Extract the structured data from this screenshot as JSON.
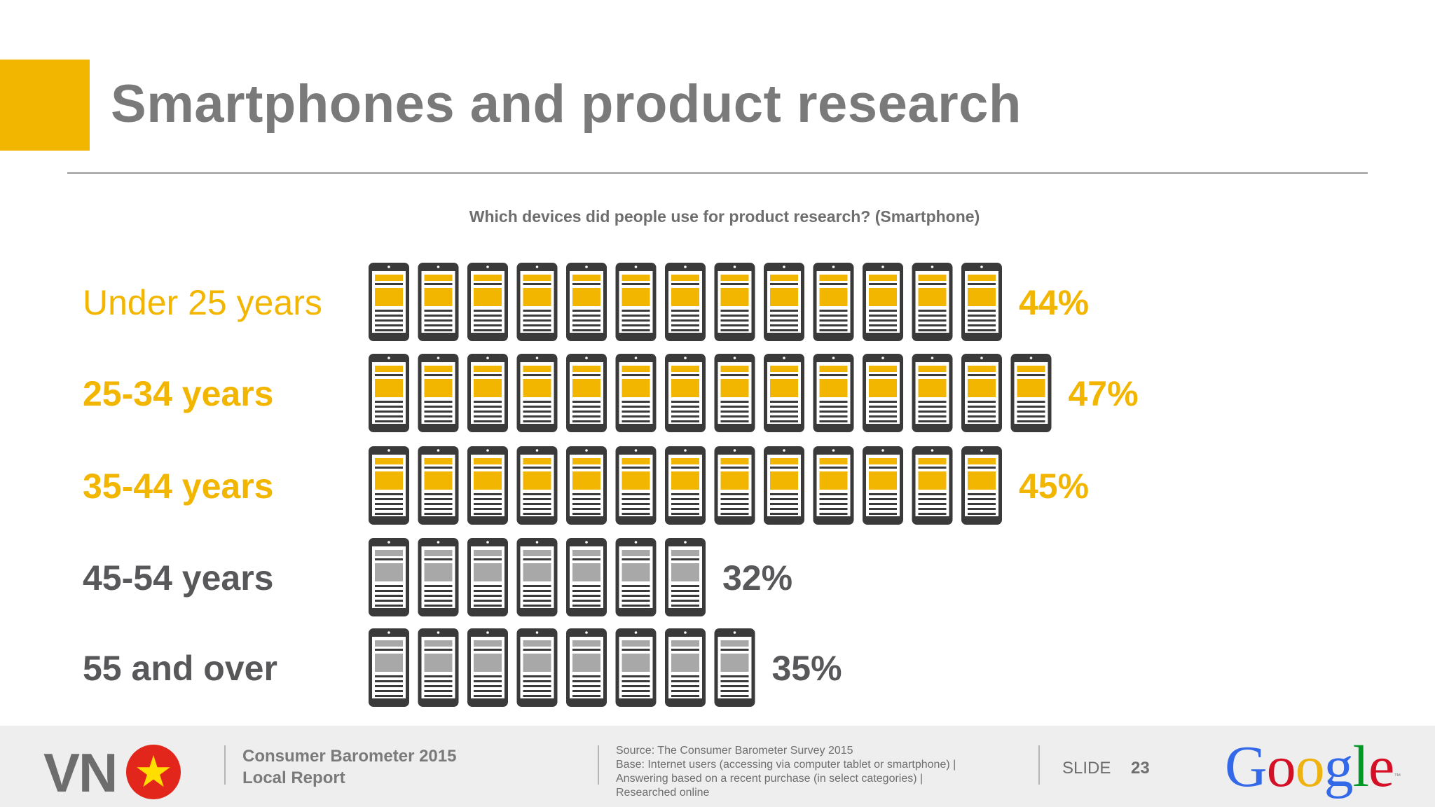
{
  "slide": {
    "title": "Smartphones and product research",
    "accent_color": "#f2b600"
  },
  "chart_data": {
    "type": "pictograph",
    "question": "Which devices did people use for product research? (Smartphone)",
    "icon": "smartphone-icon",
    "unit": "%",
    "rows": [
      {
        "label": "Under 25 years",
        "value": 44,
        "value_label": "44%",
        "icons": 13,
        "color": "#f2b600",
        "label_bold": false
      },
      {
        "label": "25-34 years",
        "value": 47,
        "value_label": "47%",
        "icons": 14,
        "color": "#f2b600",
        "label_bold": true
      },
      {
        "label": "35-44 years",
        "value": 45,
        "value_label": "45%",
        "icons": 13,
        "color": "#f2b600",
        "label_bold": true
      },
      {
        "label": "45-54 years",
        "value": 32,
        "value_label": "32%",
        "icons": 7,
        "color": "#58585a",
        "label_bold": true
      },
      {
        "label": "55 and over",
        "value": 35,
        "value_label": "35%",
        "icons": 8,
        "color": "#58585a",
        "label_bold": true
      }
    ],
    "icon_colors": {
      "highlight": "#f2b600",
      "muted": "#a8a8a8",
      "body": "#3a3a3a"
    }
  },
  "footer": {
    "country_code": "VN",
    "flag_icon": "vietnam-flag-icon",
    "report_line1": "Consumer Barometer 2015",
    "report_line2": "Local Report",
    "source_lines": [
      "Source: The Consumer Barometer Survey 2015",
      "Base: Internet users (accessing via computer  tablet or smartphone) |",
      "Answering based on a recent purchase (in select categories) |",
      "Researched online"
    ],
    "slide_label": "SLIDE",
    "slide_number": "23",
    "logo": {
      "letters": [
        "G",
        "o",
        "o",
        "g",
        "l",
        "e"
      ],
      "colors": [
        "#3369e8",
        "#d50f25",
        "#eeb211",
        "#3369e8",
        "#009925",
        "#d50f25"
      ],
      "tm": "™"
    }
  }
}
